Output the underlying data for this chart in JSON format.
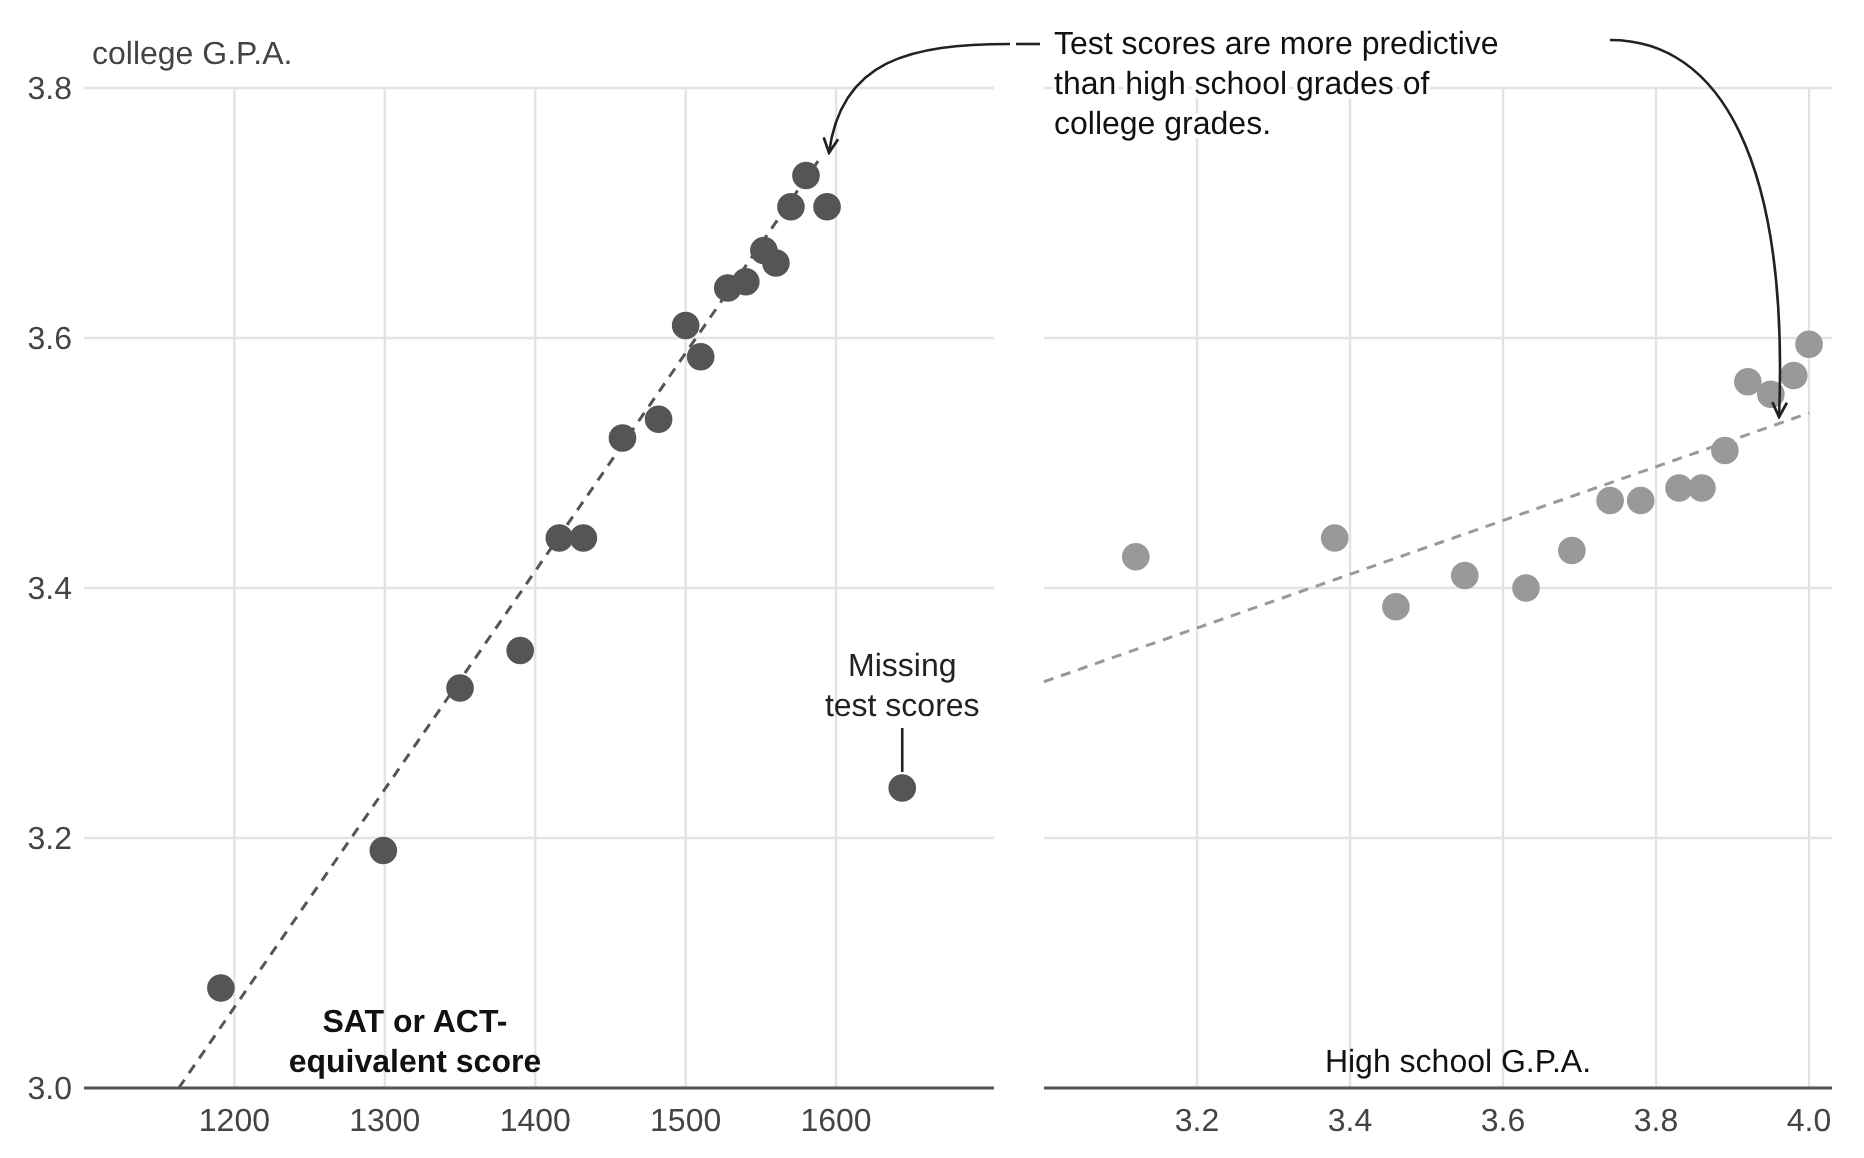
{
  "chart_data": [
    {
      "type": "scatter",
      "xlabel": "SAT or ACT-equivalent score",
      "ylabel": "college G.P.A.",
      "xlim": [
        1100,
        1705
      ],
      "xticks": [
        1200,
        1300,
        1400,
        1500,
        1600
      ],
      "ylim": [
        3.0,
        3.8
      ],
      "yticks": [
        {
          "value": 3.0,
          "label": "3.0"
        },
        3.2,
        3.4,
        3.6,
        3.8
      ],
      "grid": true,
      "annotations": [
        "Test scores are more predictive than high school grades of college grades.",
        {
          "text": "Missing test scores",
          "x": 1644,
          "y": 3.24
        }
      ],
      "series": [
        {
          "type": "line",
          "x": [
            1163,
            1590
          ],
          "values": [
            3.0,
            3.745
          ],
          "color": "#555555",
          "line_style": "dashed"
        },
        {
          "type": "scatter",
          "marker": "circle",
          "x": [
            1191,
            1299,
            1350,
            1390,
            1416,
            1432,
            1458,
            1482,
            1500,
            1510,
            1528,
            1540,
            1552,
            1560,
            1570,
            1580,
            1594,
            1644
          ],
          "values": [
            3.08,
            3.19,
            3.32,
            3.35,
            3.44,
            3.44,
            3.52,
            3.535,
            3.61,
            3.585,
            3.64,
            3.645,
            3.67,
            3.66,
            3.705,
            3.73,
            3.705,
            3.24
          ],
          "color": "#555555"
        }
      ]
    },
    {
      "type": "scatter",
      "xlabel": "High school G.P.A.",
      "xlim": [
        3.0,
        4.03
      ],
      "xticks": [
        3.2,
        3.4,
        3.6,
        3.8,
        {
          "value": 4.0,
          "label": "4.0"
        }
      ],
      "ylim": [
        3.0,
        3.8
      ],
      "yticks": [
        3.0,
        3.2,
        3.4,
        3.6,
        3.8
      ],
      "grid": true,
      "tick_labels": "x",
      "series": [
        {
          "type": "line",
          "x": [
            3.0,
            4.0
          ],
          "values": [
            3.325,
            3.54
          ],
          "color": "#999999",
          "line_style": "dashed"
        },
        {
          "type": "scatter",
          "marker": "circle",
          "x": [
            3.12,
            3.38,
            3.46,
            3.55,
            3.63,
            3.69,
            3.74,
            3.78,
            3.83,
            3.86,
            3.89,
            3.92,
            3.95,
            3.98,
            4.0
          ],
          "values": [
            3.425,
            3.44,
            3.385,
            3.41,
            3.4,
            3.43,
            3.47,
            3.47,
            3.48,
            3.48,
            3.51,
            3.565,
            3.555,
            3.57,
            3.595
          ],
          "color": "#999999"
        }
      ]
    }
  ]
}
